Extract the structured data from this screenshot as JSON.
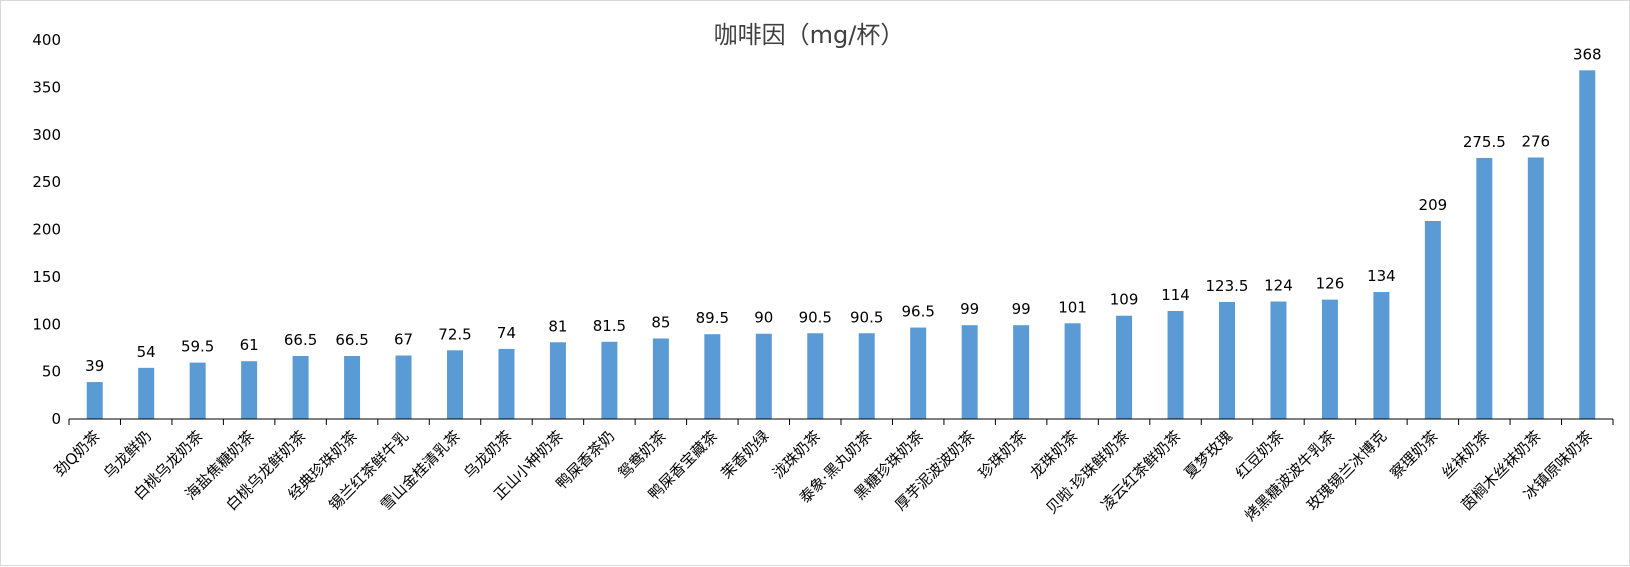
{
  "chart_data": {
    "type": "bar",
    "title": "咖啡因（mg/杯）",
    "categories": [
      "劲Q奶茶",
      "乌龙鲜奶",
      "白桃乌龙奶茶",
      "海盐焦糖奶茶",
      "白桃乌龙鲜奶茶",
      "经典珍珠奶茶",
      "锡兰红茶鲜牛乳",
      "雪山金桂清乳茶",
      "乌龙奶茶",
      "正山小种奶茶",
      "鸭屎香茶奶",
      "鸳鸯奶茶",
      "鸭屎香宝藏茶",
      "茉香奶绿",
      "泷珠奶茶",
      "泰象·黑丸奶茶",
      "黑糖珍珠奶茶",
      "厚芋泥波波奶茶",
      "珍珠奶茶",
      "龙珠奶茶",
      "贝啦·珍珠鲜奶茶",
      "凌云红茶鲜奶茶",
      "夏梦玫瑰",
      "红豆奶茶",
      "烤黑糖波波牛乳茶",
      "玫瑰锡兰冰博克",
      "察理奶茶",
      "丝袜奶茶",
      "茵榈木丝袜奶茶",
      "冰镇原味奶茶"
    ],
    "values": [
      39,
      54,
      59.5,
      61,
      66.5,
      66.5,
      67,
      72.5,
      74,
      81,
      81.5,
      85,
      89.5,
      90,
      90.5,
      90.5,
      96.5,
      99,
      99,
      101,
      109,
      114,
      123.5,
      124,
      126,
      134,
      209,
      275.5,
      276,
      368
    ],
    "value_labels": [
      "39",
      "54",
      "59.5",
      "61",
      "66.5",
      "66.5",
      "67",
      "72.5",
      "74",
      "81",
      "81.5",
      "85",
      "89.5",
      "90",
      "90.5",
      "90.5",
      "96.5",
      "99",
      "99",
      "101",
      "109",
      "114",
      "123.5",
      "124",
      "126",
      "134",
      "209",
      "275.5",
      "276",
      "368"
    ],
    "yticks": [
      "0",
      "50",
      "100",
      "150",
      "200",
      "250",
      "300",
      "350",
      "400"
    ],
    "ylim": [
      0,
      400
    ],
    "xlabel": "",
    "ylabel": "",
    "grid": false,
    "bar_color": "#5b9bd5"
  }
}
